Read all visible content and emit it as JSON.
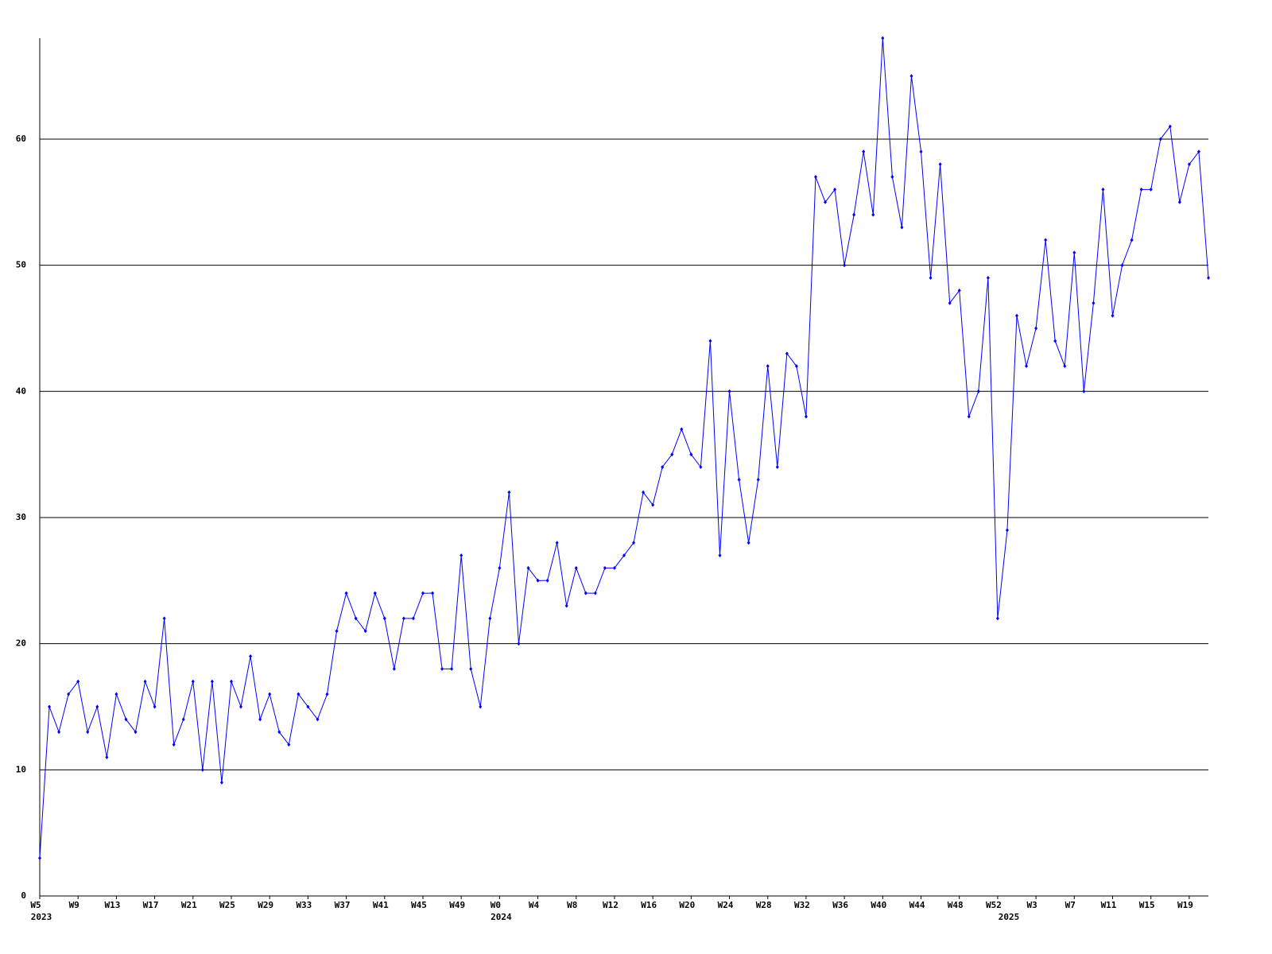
{
  "chart_data": {
    "type": "line",
    "categories": [
      "W5",
      null,
      null,
      null,
      "W9",
      null,
      null,
      null,
      "W13",
      null,
      null,
      null,
      "W17",
      null,
      null,
      null,
      "W21",
      null,
      null,
      null,
      "W25",
      null,
      null,
      null,
      "W29",
      null,
      null,
      null,
      "W33",
      null,
      null,
      null,
      "W37",
      null,
      null,
      null,
      "W41",
      null,
      null,
      null,
      "W45",
      null,
      null,
      null,
      "W49",
      null,
      null,
      null,
      "W0",
      null,
      null,
      null,
      "W4",
      null,
      null,
      null,
      "W8",
      null,
      null,
      null,
      "W12",
      null,
      null,
      null,
      "W16",
      null,
      null,
      null,
      "W20",
      null,
      null,
      null,
      "W24",
      null,
      null,
      null,
      "W28",
      null,
      null,
      null,
      "W32",
      null,
      null,
      null,
      "W36",
      null,
      null,
      null,
      "W40",
      null,
      null,
      null,
      "W44",
      null,
      null,
      null,
      "W48",
      null,
      null,
      null,
      "W52",
      null,
      null,
      null,
      "W3",
      null,
      null,
      null,
      "W7",
      null,
      null,
      null,
      "W11",
      null,
      null,
      null,
      "W15",
      null,
      null,
      null,
      "W19",
      null,
      null
    ],
    "category_years": [
      "2023",
      null,
      null,
      null,
      null,
      null,
      null,
      null,
      null,
      null,
      null,
      null,
      null,
      null,
      null,
      null,
      null,
      null,
      null,
      null,
      null,
      null,
      null,
      null,
      null,
      null,
      null,
      null,
      null,
      null,
      null,
      null,
      null,
      null,
      null,
      null,
      null,
      null,
      null,
      null,
      null,
      null,
      null,
      null,
      null,
      null,
      null,
      null,
      "2024",
      null,
      null,
      null,
      null,
      null,
      null,
      null,
      null,
      null,
      null,
      null,
      null,
      null,
      null,
      null,
      null,
      null,
      null,
      null,
      null,
      null,
      null,
      null,
      null,
      null,
      null,
      null,
      null,
      null,
      null,
      null,
      null,
      null,
      null,
      null,
      null,
      null,
      null,
      null,
      null,
      null,
      null,
      null,
      null,
      null,
      null,
      null,
      null,
      null,
      null,
      null,
      null,
      "2025",
      null,
      null,
      null,
      null,
      null,
      null,
      null,
      null,
      null,
      null,
      null,
      null,
      null,
      null,
      null,
      null,
      null,
      null,
      null,
      null,
      null
    ],
    "series": [
      {
        "color": "#0000ff",
        "values": [
          3,
          15,
          13,
          16,
          17,
          13,
          15,
          11,
          16,
          14,
          13,
          17,
          15,
          22,
          12,
          14,
          17,
          10,
          17,
          9,
          17,
          15,
          19,
          14,
          16,
          13,
          12,
          16,
          15,
          14,
          16,
          21,
          24,
          22,
          21,
          24,
          22,
          18,
          22,
          22,
          24,
          24,
          18,
          18,
          27,
          18,
          15,
          22,
          26,
          32,
          20,
          26,
          25,
          25,
          28,
          23,
          26,
          24,
          24,
          26,
          26,
          27,
          28,
          32,
          31,
          34,
          35,
          37,
          35,
          34,
          44,
          27,
          40,
          33,
          28,
          33,
          42,
          34,
          43,
          42,
          38,
          57,
          55,
          56,
          50,
          54,
          59,
          54,
          68,
          57,
          53,
          65,
          59,
          49,
          58,
          47,
          48,
          38,
          40,
          49,
          22,
          29,
          46,
          42,
          45,
          52,
          44,
          42,
          51,
          40,
          47,
          56,
          46,
          50,
          52,
          56,
          56,
          60,
          61,
          55,
          58,
          59,
          49
        ]
      }
    ],
    "ylim": [
      0,
      68
    ],
    "yticks": [
      0,
      10,
      20,
      30,
      40,
      50,
      60
    ],
    "grid": true
  }
}
